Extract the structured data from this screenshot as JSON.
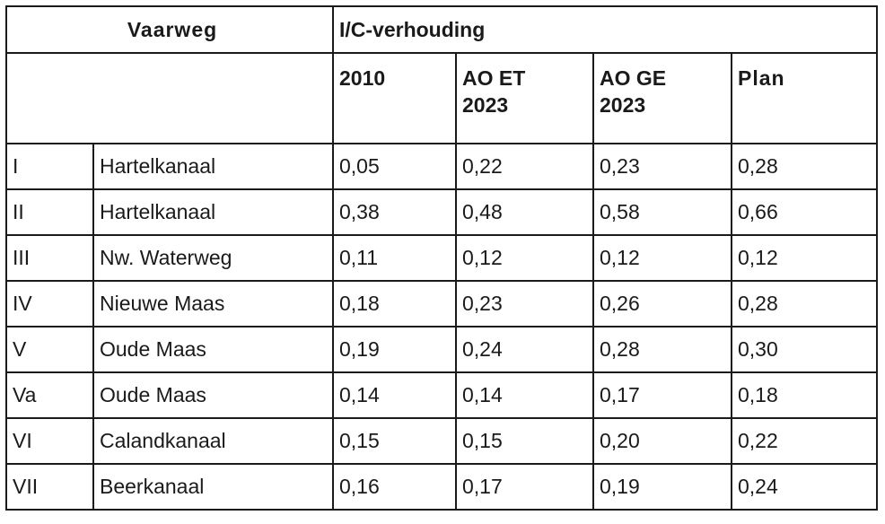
{
  "table": {
    "header": {
      "vaarweg": "Vaarweg",
      "ic_ratio": "I/C-verhouding"
    },
    "columns": [
      "2010",
      "AO ET 2023",
      "AO GE 2023",
      "Plan"
    ],
    "column_lines": [
      [
        "2010"
      ],
      [
        "AO ET",
        "2023"
      ],
      [
        "AO GE",
        "2023"
      ],
      [
        "Plan"
      ]
    ],
    "rows": [
      {
        "id": "I",
        "name": "Hartelkanaal",
        "values": [
          "0,05",
          "0,22",
          "0,23",
          "0,28"
        ]
      },
      {
        "id": "II",
        "name": "Hartelkanaal",
        "values": [
          "0,38",
          "0,48",
          "0,58",
          "0,66"
        ]
      },
      {
        "id": "III",
        "name": "Nw. Waterweg",
        "values": [
          "0,11",
          "0,12",
          "0,12",
          "0,12"
        ]
      },
      {
        "id": "IV",
        "name": "Nieuwe Maas",
        "values": [
          "0,18",
          "0,23",
          "0,26",
          "0,28"
        ]
      },
      {
        "id": "V",
        "name": "Oude Maas",
        "values": [
          "0,19",
          "0,24",
          "0,28",
          "0,30"
        ]
      },
      {
        "id": "Va",
        "name": "Oude Maas",
        "values": [
          "0,14",
          "0,14",
          "0,17",
          "0,18"
        ]
      },
      {
        "id": "VI",
        "name": "Calandkanaal",
        "values": [
          "0,15",
          "0,15",
          "0,20",
          "0,22"
        ]
      },
      {
        "id": "VII",
        "name": "Beerkanaal",
        "values": [
          "0,16",
          "0,17",
          "0,19",
          "0,24"
        ]
      }
    ]
  }
}
